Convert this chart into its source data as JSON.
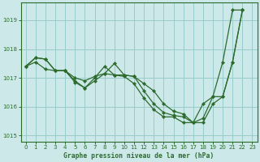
{
  "title": "Graphe pression niveau de la mer (hPa)",
  "bg_color": "#cce8e8",
  "grid_color": "#99cccc",
  "line_color": "#2d6b2d",
  "xlim": [
    -0.5,
    23.5
  ],
  "ylim": [
    1014.8,
    1019.6
  ],
  "yticks": [
    1015,
    1016,
    1017,
    1018,
    1019
  ],
  "xticks": [
    0,
    1,
    2,
    3,
    4,
    5,
    6,
    7,
    8,
    9,
    10,
    11,
    12,
    13,
    14,
    15,
    16,
    17,
    18,
    19,
    20,
    21,
    22,
    23
  ],
  "series1_x": [
    0,
    1,
    2,
    3,
    4,
    5,
    6,
    7,
    8,
    9,
    10,
    11,
    12,
    13,
    14,
    15,
    16,
    17,
    18,
    19,
    20,
    21,
    22
  ],
  "series1_y": [
    1017.4,
    1017.7,
    1017.65,
    1017.25,
    1017.25,
    1016.9,
    1016.65,
    1016.9,
    1017.15,
    1017.5,
    1017.1,
    1017.05,
    1016.55,
    1016.1,
    1015.8,
    1015.7,
    1015.65,
    1015.45,
    1015.45,
    1016.1,
    1016.35,
    1017.55,
    1019.35
  ],
  "series2_x": [
    0,
    1,
    2,
    3,
    4,
    5,
    6,
    7,
    8,
    9,
    10,
    11,
    12,
    13,
    14,
    15,
    16,
    17,
    18,
    19,
    20,
    21,
    22
  ],
  "series2_y": [
    1017.4,
    1017.7,
    1017.65,
    1017.25,
    1017.25,
    1016.85,
    1016.65,
    1017.0,
    1017.4,
    1017.1,
    1017.1,
    1017.05,
    1016.8,
    1016.55,
    1016.1,
    1015.85,
    1015.75,
    1015.45,
    1015.6,
    1016.35,
    1016.35,
    1017.55,
    1019.35
  ],
  "series3_x": [
    0,
    1,
    2,
    3,
    4,
    5,
    6,
    7,
    8,
    9,
    10,
    11,
    12,
    13,
    14,
    15,
    16,
    17,
    18,
    19,
    20,
    21,
    22
  ],
  "series3_y": [
    1017.4,
    1017.55,
    1017.3,
    1017.25,
    1017.25,
    1017.0,
    1016.9,
    1017.05,
    1017.15,
    1017.1,
    1017.05,
    1016.8,
    1016.3,
    1015.9,
    1015.65,
    1015.65,
    1015.45,
    1015.45,
    1016.1,
    1016.35,
    1017.55,
    1019.35,
    1019.35
  ]
}
